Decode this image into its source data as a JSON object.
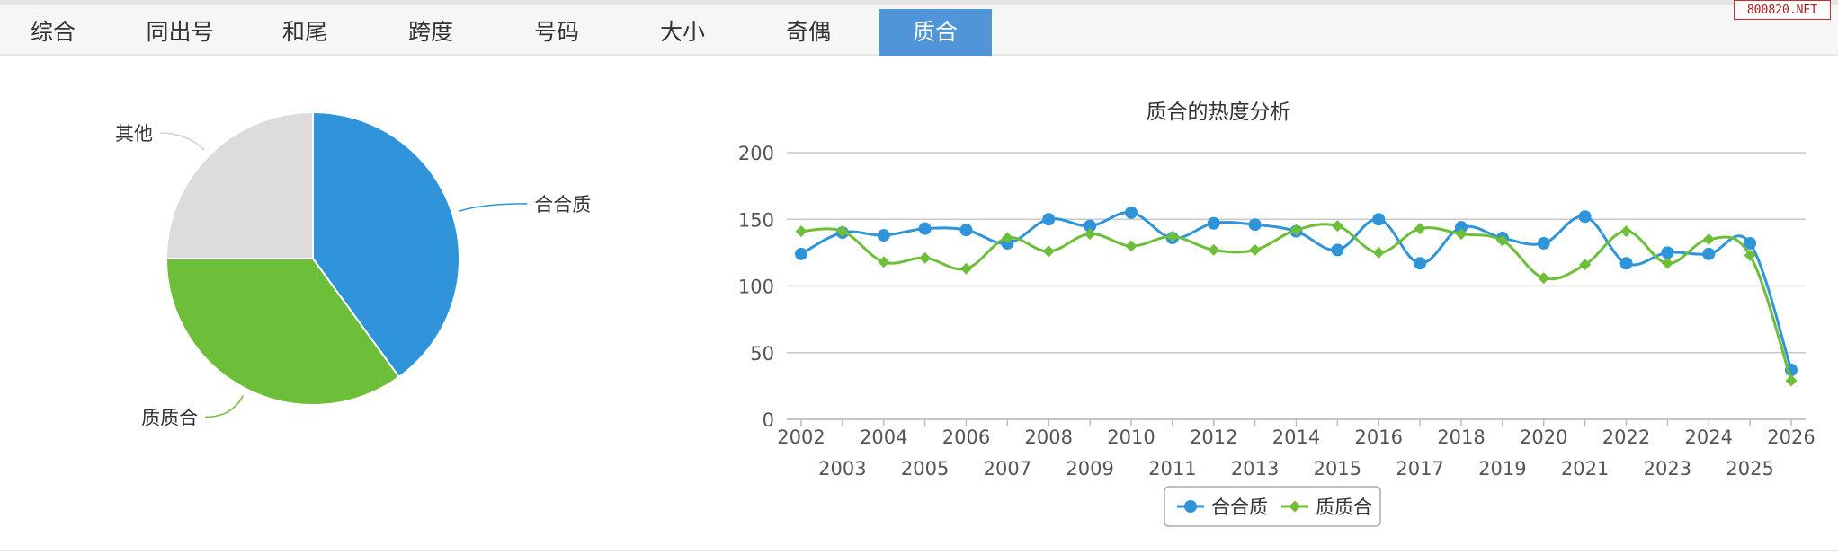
{
  "tabs": [
    {
      "label": "综合"
    },
    {
      "label": "同出号"
    },
    {
      "label": "和尾"
    },
    {
      "label": "跨度"
    },
    {
      "label": "号码"
    },
    {
      "label": "大小"
    },
    {
      "label": "奇偶"
    },
    {
      "label": "质合",
      "active": true
    }
  ],
  "watermark": "800820.NET",
  "colors": {
    "blue": "#2f94d9",
    "green": "#6dbf3a",
    "gray": "#dcdcdc",
    "tab_active": "#4f95d8"
  },
  "chart_data": [
    {
      "type": "pie",
      "slices": [
        {
          "label": "合合质",
          "value": 40,
          "color": "#2f94d9"
        },
        {
          "label": "质质合",
          "value": 35,
          "color": "#6dbf3a"
        },
        {
          "label": "其他",
          "value": 25,
          "color": "#dcdcdc"
        }
      ]
    },
    {
      "type": "line",
      "title": "质合的热度分析",
      "x": [
        "2002",
        "2003",
        "2004",
        "2005",
        "2006",
        "2007",
        "2008",
        "2009",
        "2010",
        "2011",
        "2012",
        "2013",
        "2014",
        "2015",
        "2016",
        "2017",
        "2018",
        "2019",
        "2020",
        "2021",
        "2022",
        "2023",
        "2024",
        "2025",
        "2026"
      ],
      "ylim": [
        0,
        200
      ],
      "yticks": [
        "0",
        "50",
        "100",
        "150",
        "200"
      ],
      "grid": true,
      "legend_position": "bottom-center",
      "series": [
        {
          "name": "合合质",
          "color": "#2f94d9",
          "marker": "circle",
          "values": [
            124,
            140,
            138,
            143,
            142,
            132,
            150,
            145,
            155,
            136,
            147,
            146,
            141,
            127,
            150,
            117,
            144,
            136,
            132,
            152,
            117,
            125,
            124,
            132,
            37
          ]
        },
        {
          "name": "质质合",
          "color": "#6dbf3a",
          "marker": "diamond",
          "values": [
            141,
            141,
            118,
            121,
            113,
            136,
            126,
            139,
            130,
            137,
            127,
            127,
            142,
            145,
            125,
            143,
            139,
            134,
            106,
            116,
            141,
            117,
            135,
            123,
            29
          ]
        }
      ]
    }
  ]
}
